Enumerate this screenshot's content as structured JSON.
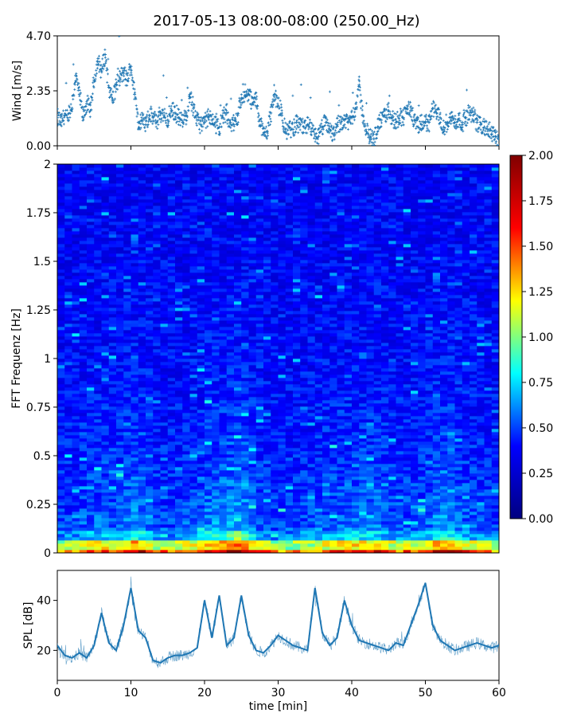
{
  "figure": {
    "title": "2017-05-13 08:00-08:00 (250.00_Hz)"
  },
  "chart_data": [
    {
      "type": "scatter",
      "ylabel": "Wind [m/s]",
      "xlabel": "",
      "xlim": [
        0,
        60
      ],
      "ylim": [
        0,
        4.7
      ],
      "yticks": [
        "0.00",
        "2.35",
        "4.70"
      ],
      "marker": "+",
      "color": "#1f77b4",
      "x": [
        0,
        0.5,
        1,
        1.5,
        2,
        2.5,
        3,
        3.5,
        4,
        4.5,
        5,
        5.5,
        6,
        6.5,
        7,
        7.5,
        8,
        8.5,
        9,
        9.5,
        10,
        10.5,
        11,
        11.5,
        12,
        12.5,
        13,
        13.5,
        14,
        14.5,
        15,
        15.5,
        16,
        16.5,
        17,
        17.5,
        18,
        18.5,
        19,
        19.5,
        20,
        20.5,
        21,
        21.5,
        22,
        22.5,
        23,
        23.5,
        24,
        24.5,
        25,
        25.5,
        26,
        26.5,
        27,
        27.5,
        28,
        28.5,
        29,
        29.5,
        30,
        30.5,
        31,
        31.5,
        32,
        32.5,
        33,
        33.5,
        34,
        34.5,
        35,
        35.5,
        36,
        36.5,
        37,
        37.5,
        38,
        38.5,
        39,
        39.5,
        40,
        40.5,
        41,
        41.5,
        42,
        42.5,
        43,
        43.5,
        44,
        44.5,
        45,
        45.5,
        46,
        46.5,
        47,
        47.5,
        48,
        48.5,
        49,
        49.5,
        50,
        50.5,
        51,
        51.5,
        52,
        52.5,
        53,
        53.5,
        54,
        54.5,
        55,
        55.5,
        56,
        56.5,
        57,
        57.5,
        58,
        58.5,
        59,
        59.5,
        60
      ],
      "values": [
        1.2,
        1.0,
        1.3,
        1.1,
        1.6,
        3.0,
        2.2,
        1.2,
        1.8,
        1.5,
        2.8,
        3.6,
        3.2,
        3.9,
        2.5,
        2.0,
        2.6,
        2.9,
        3.1,
        2.8,
        3.4,
        2.2,
        1.0,
        1.1,
        0.9,
        1.3,
        1.2,
        1.0,
        1.4,
        1.3,
        1.1,
        1.5,
        1.4,
        1.2,
        1.0,
        1.3,
        2.2,
        1.6,
        1.1,
        0.9,
        1.0,
        1.2,
        1.1,
        1.0,
        0.8,
        1.2,
        1.4,
        1.0,
        0.9,
        1.3,
        2.0,
        2.1,
        2.2,
        1.8,
        2.0,
        1.1,
        0.5,
        0.6,
        1.4,
        2.2,
        1.7,
        1.3,
        0.6,
        0.8,
        0.7,
        1.0,
        0.9,
        0.8,
        0.9,
        0.6,
        0.5,
        0.4,
        0.8,
        1.0,
        0.7,
        0.5,
        0.9,
        1.0,
        1.1,
        1.0,
        1.2,
        1.6,
        2.6,
        1.3,
        0.6,
        0.4,
        0.3,
        0.8,
        1.1,
        1.3,
        1.5,
        1.2,
        1.0,
        1.3,
        1.2,
        1.6,
        1.5,
        1.1,
        0.8,
        0.9,
        1.0,
        1.0,
        1.6,
        1.4,
        1.2,
        0.8,
        1.0,
        1.2,
        1.0,
        1.1,
        1.0,
        1.2,
        1.4,
        1.3,
        1.0,
        0.9,
        0.8,
        0.7,
        0.5,
        0.4,
        0.3
      ]
    },
    {
      "type": "heatmap",
      "ylabel": "FFT Frequenz [Hz]",
      "xlabel": "",
      "xlim": [
        0,
        60
      ],
      "ylim": [
        0,
        2
      ],
      "yticks": [
        "0",
        "0.25",
        "0.5",
        "0.75",
        "1",
        "1.25",
        "1.5",
        "1.75",
        "2"
      ],
      "colormap": "jet",
      "colorbar": {
        "vmin": 0,
        "vmax": 2,
        "ticks": [
          "0.00",
          "0.25",
          "0.50",
          "0.75",
          "1.00",
          "1.25",
          "1.50",
          "1.75",
          "2.00"
        ]
      },
      "colorbar_stops": [
        "#000080",
        "#0000ff",
        "#00ffff",
        "#ffff00",
        "#ff0000",
        "#800000"
      ],
      "time_activity": [
        0.35,
        0.35,
        0.35,
        0.45,
        0.5,
        0.5,
        0.55,
        0.5,
        0.5,
        0.65,
        0.75,
        0.65,
        0.55,
        0.4,
        0.35,
        0.35,
        0.4,
        0.45,
        0.5,
        0.5,
        0.65,
        0.75,
        0.75,
        0.8,
        0.85,
        0.85,
        0.6,
        0.5,
        0.4,
        0.35,
        0.35,
        0.35,
        0.35,
        0.4,
        0.4,
        0.45,
        0.5,
        0.5,
        0.55,
        0.6,
        0.6,
        0.6,
        0.6,
        0.6,
        0.5,
        0.45,
        0.45,
        0.45,
        0.4,
        0.45,
        0.5,
        0.7,
        0.75,
        0.7,
        0.6,
        0.5,
        0.45,
        0.45,
        0.4,
        0.35,
        0.35
      ]
    },
    {
      "type": "line",
      "ylabel": "SPL [dB]",
      "xlabel": "time [min]",
      "xlim": [
        0,
        60
      ],
      "ylim": [
        8,
        52
      ],
      "yticks": [
        "20",
        "40"
      ],
      "xticks": [
        "0",
        "10",
        "20",
        "30",
        "40",
        "50",
        "60"
      ],
      "color": "#1f77b4",
      "x": [
        0,
        1,
        2,
        3,
        4,
        5,
        6,
        7,
        8,
        9,
        10,
        11,
        12,
        13,
        14,
        15,
        16,
        17,
        18,
        19,
        20,
        21,
        22,
        23,
        24,
        25,
        26,
        27,
        28,
        29,
        30,
        31,
        32,
        33,
        34,
        35,
        36,
        37,
        38,
        39,
        40,
        41,
        42,
        43,
        44,
        45,
        46,
        47,
        48,
        49,
        50,
        51,
        52,
        53,
        54,
        55,
        56,
        57,
        58,
        59,
        60
      ],
      "values": [
        22,
        18,
        17,
        19,
        17,
        22,
        35,
        23,
        20,
        30,
        45,
        28,
        25,
        16,
        15,
        17,
        18,
        18,
        19,
        21,
        40,
        25,
        42,
        22,
        25,
        42,
        26,
        20,
        19,
        22,
        26,
        24,
        22,
        21,
        20,
        45,
        27,
        22,
        25,
        40,
        30,
        24,
        23,
        22,
        21,
        20,
        23,
        22,
        30,
        38,
        47,
        30,
        24,
        22,
        20,
        21,
        22,
        23,
        22,
        21,
        22
      ],
      "band": 3
    }
  ]
}
